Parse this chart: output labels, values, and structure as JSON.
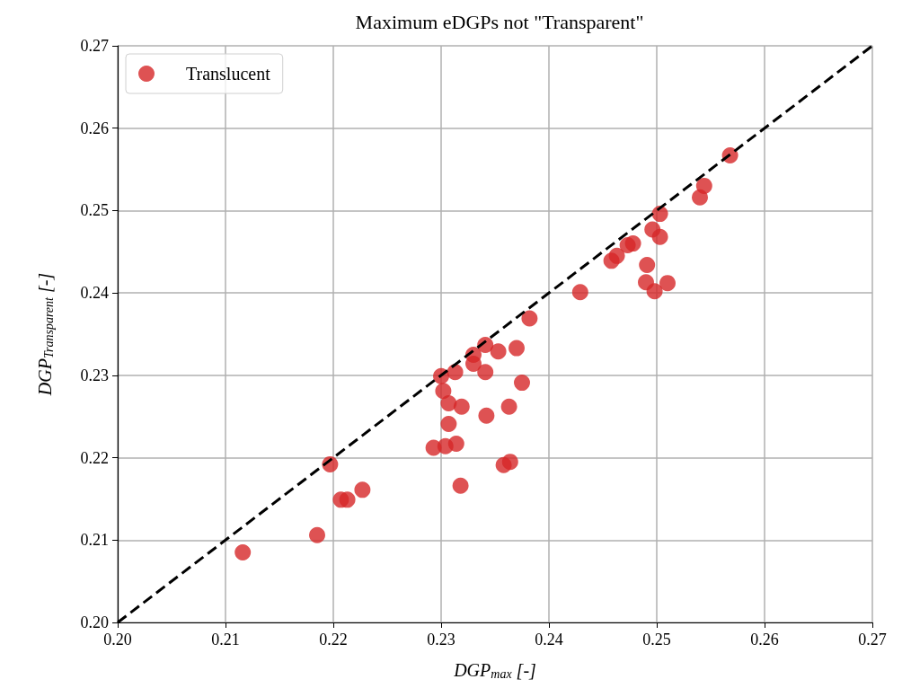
{
  "chart_data": {
    "type": "scatter",
    "title": "Maximum eDGPs not \"Transparent\"",
    "xlabel": "DGP$_{max}$ [-]",
    "ylabel": "DGP$_{Transparent}$ [-]",
    "xlim": [
      0.2,
      0.27
    ],
    "ylim": [
      0.2,
      0.27
    ],
    "xticks": [
      {
        "value": 0.2,
        "label": "0.20"
      },
      {
        "value": 0.21,
        "label": "0.21"
      },
      {
        "value": 0.22,
        "label": "0.22"
      },
      {
        "value": 0.23,
        "label": "0.23"
      },
      {
        "value": 0.24,
        "label": "0.24"
      },
      {
        "value": 0.25,
        "label": "0.25"
      },
      {
        "value": 0.26,
        "label": "0.26"
      },
      {
        "value": 0.27,
        "label": "0.27"
      }
    ],
    "yticks": [
      {
        "value": 0.2,
        "label": "0.20"
      },
      {
        "value": 0.21,
        "label": "0.21"
      },
      {
        "value": 0.22,
        "label": "0.22"
      },
      {
        "value": 0.23,
        "label": "0.23"
      },
      {
        "value": 0.24,
        "label": "0.24"
      },
      {
        "value": 0.25,
        "label": "0.25"
      },
      {
        "value": 0.26,
        "label": "0.26"
      },
      {
        "value": 0.27,
        "label": "0.27"
      }
    ],
    "grid": true,
    "legend": "top left",
    "marker": "circle",
    "series": [
      {
        "name": "Translucent",
        "color": "#d62728",
        "x": [
          0.2116,
          0.2185,
          0.2197,
          0.2207,
          0.2213,
          0.2227,
          0.2293,
          0.2304,
          0.2314,
          0.2307,
          0.2318,
          0.23,
          0.2302,
          0.2307,
          0.2319,
          0.2313,
          0.233,
          0.233,
          0.2341,
          0.2341,
          0.2353,
          0.2342,
          0.237,
          0.2375,
          0.2382,
          0.2363,
          0.2358,
          0.2364,
          0.2429,
          0.2458,
          0.2463,
          0.2473,
          0.2478,
          0.2491,
          0.249,
          0.2498,
          0.251,
          0.2496,
          0.2503,
          0.2503,
          0.254,
          0.2544,
          0.2568
        ],
        "values": [
          0.2085,
          0.2106,
          0.2192,
          0.2149,
          0.2149,
          0.2161,
          0.2212,
          0.2214,
          0.2217,
          0.2241,
          0.2166,
          0.2299,
          0.2281,
          0.2266,
          0.2262,
          0.2304,
          0.2325,
          0.2314,
          0.2337,
          0.2304,
          0.2329,
          0.2251,
          0.2333,
          0.2291,
          0.2369,
          0.2262,
          0.2191,
          0.2195,
          0.2401,
          0.2439,
          0.2445,
          0.2458,
          0.246,
          0.2434,
          0.2413,
          0.2402,
          0.2412,
          0.2477,
          0.2496,
          0.2468,
          0.2516,
          0.253,
          0.2567
        ]
      },
      {
        "type": "line",
        "color": "#000000",
        "line_style": "dashed",
        "marker": "none",
        "x": [
          0.2,
          0.27
        ],
        "values": [
          0.2,
          0.27
        ]
      }
    ]
  }
}
